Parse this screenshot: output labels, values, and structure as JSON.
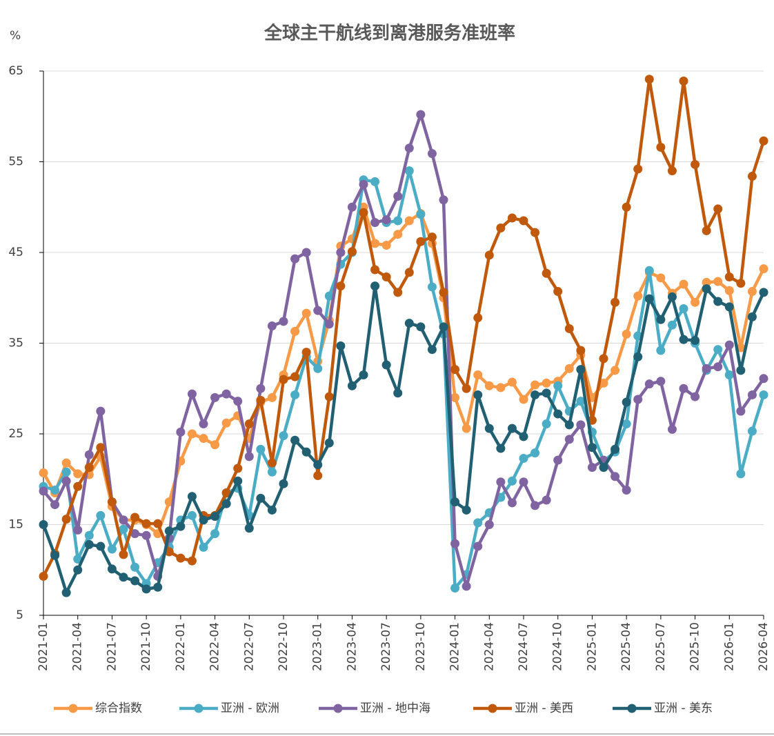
{
  "chart_data": {
    "type": "line",
    "title": "全球主干航线到离港服务准班率",
    "y_label": "%",
    "categories": [
      "2021-01",
      null,
      null,
      "2021-04",
      null,
      null,
      "2021-07",
      null,
      null,
      "2021-10",
      null,
      null,
      "2022-01",
      null,
      null,
      "2022-04",
      null,
      null,
      "2022-07",
      null,
      null,
      "2022-10",
      null,
      null,
      "2023-01",
      null,
      null,
      "2023-04",
      null,
      null,
      "2023-07",
      null,
      null,
      "2023-10",
      null,
      null,
      "2024-01",
      null,
      null,
      "2024-04",
      null,
      null,
      "2024-07",
      null,
      null,
      "2024-10",
      null,
      null,
      "2025-01",
      null,
      null,
      "2025-04",
      null,
      null,
      "2025-07",
      null,
      null,
      "2025-10",
      null,
      null,
      "2026-01",
      null,
      null,
      "2026-04"
    ],
    "ylim": [
      5,
      65
    ],
    "yticks": [
      5,
      15,
      25,
      35,
      45,
      55,
      65
    ],
    "grid": true,
    "series": [
      {
        "name": "综合指数",
        "color": "#f79a47",
        "values": [
          20.7,
          18.5,
          21.8,
          20.6,
          20.5,
          22.5,
          17.0,
          15.5,
          15.5,
          15.0,
          14.0,
          17.5,
          22.0,
          25.0,
          24.5,
          23.8,
          26.2,
          27.0,
          24.5,
          28.5,
          29.0,
          31.5,
          36.3,
          38.3,
          33.0,
          37.5,
          45.7,
          46.5,
          50.0,
          46.0,
          45.8,
          47.0,
          48.5,
          49.3,
          46.0,
          40.0,
          29.0,
          25.6,
          31.5,
          30.3,
          30.1,
          30.7,
          28.8,
          30.4,
          30.6,
          30.8,
          32.2,
          33.7,
          29.0,
          30.6,
          32.0,
          36.0,
          40.2,
          42.8,
          42.2,
          40.5,
          41.5,
          39.5,
          41.7,
          41.8,
          40.8,
          34.5,
          40.7,
          43.2
        ]
      },
      {
        "name": "亚洲 - 欧洲",
        "color": "#4bacc6",
        "values": [
          19.2,
          18.8,
          20.8,
          11.2,
          13.8,
          16.0,
          12.3,
          14.5,
          10.3,
          8.5,
          10.8,
          12.5,
          15.5,
          16.0,
          12.5,
          14.0,
          18.5,
          19.0,
          16.0,
          23.3,
          20.8,
          24.8,
          29.3,
          33.5,
          32.2,
          40.2,
          43.7,
          45.0,
          53.0,
          52.8,
          48.3,
          48.5,
          54.0,
          49.2,
          41.2,
          36.0,
          8.0,
          9.5,
          15.2,
          16.3,
          18.0,
          19.8,
          22.3,
          22.9,
          26.1,
          30.3,
          27.5,
          28.6,
          25.2,
          22.0,
          23.0,
          26.1,
          35.8,
          43.0,
          34.2,
          37.0,
          38.8,
          35.0,
          32.0,
          34.3,
          31.5,
          20.6,
          25.3,
          29.3
        ]
      },
      {
        "name": "亚洲 - 地中海",
        "color": "#8064a2",
        "values": [
          18.7,
          17.2,
          19.8,
          14.4,
          22.7,
          27.5,
          17.5,
          15.5,
          14.0,
          13.8,
          9.3,
          13.5,
          25.2,
          29.4,
          26.1,
          29.0,
          29.4,
          28.6,
          22.5,
          30.0,
          36.9,
          37.4,
          44.3,
          45.0,
          38.6,
          37.1,
          45.0,
          50.0,
          52.5,
          48.3,
          48.6,
          51.2,
          56.5,
          60.2,
          55.9,
          50.8,
          12.9,
          8.2,
          12.6,
          15.0,
          19.7,
          17.4,
          19.7,
          17.1,
          17.7,
          22.1,
          24.4,
          26.0,
          21.3,
          22.1,
          20.3,
          18.8,
          28.8,
          30.5,
          30.8,
          25.5,
          30.0,
          29.1,
          32.2,
          32.4,
          34.8,
          27.5,
          29.3,
          31.1
        ]
      },
      {
        "name": "亚洲 - 美西",
        "color": "#c0590b",
        "values": [
          9.3,
          11.8,
          15.6,
          19.2,
          21.3,
          23.5,
          17.5,
          11.7,
          15.8,
          15.1,
          15.1,
          12.0,
          11.3,
          11.0,
          16.0,
          16.0,
          18.5,
          21.2,
          26.1,
          28.7,
          21.8,
          31.0,
          31.3,
          34.0,
          20.4,
          29.1,
          41.3,
          45.1,
          49.4,
          43.1,
          42.3,
          40.6,
          42.8,
          46.2,
          46.7,
          40.6,
          32.1,
          30.0,
          37.8,
          44.7,
          47.7,
          48.8,
          48.5,
          47.2,
          42.7,
          40.7,
          36.6,
          34.2,
          26.5,
          33.3,
          39.5,
          50.0,
          54.2,
          64.1,
          56.6,
          54.0,
          63.9,
          54.7,
          47.4,
          49.8,
          42.3,
          41.6,
          53.4,
          57.3
        ]
      },
      {
        "name": "亚洲 - 美东",
        "color": "#215f73",
        "values": [
          15.0,
          11.6,
          7.5,
          10.0,
          12.8,
          12.6,
          10.1,
          9.2,
          8.8,
          7.9,
          8.1,
          14.3,
          14.8,
          18.1,
          15.5,
          15.9,
          17.3,
          19.8,
          14.6,
          17.9,
          16.6,
          19.5,
          24.3,
          23.0,
          21.6,
          24.0,
          34.7,
          30.3,
          31.5,
          41.3,
          32.6,
          29.5,
          37.2,
          36.8,
          34.3,
          36.8,
          17.5,
          16.6,
          29.3,
          25.6,
          23.4,
          25.6,
          24.7,
          29.3,
          29.5,
          27.2,
          26.0,
          32.1,
          23.5,
          21.3,
          23.3,
          28.5,
          33.5,
          39.9,
          37.6,
          40.1,
          35.4,
          35.3,
          41.0,
          39.6,
          39.0,
          32.0,
          37.9,
          40.6
        ]
      }
    ]
  }
}
